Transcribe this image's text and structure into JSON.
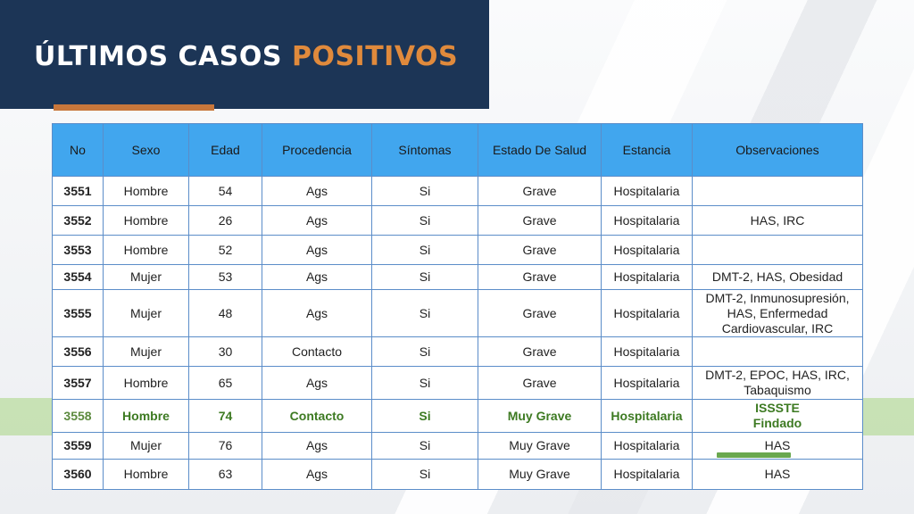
{
  "title": {
    "main": "ÚLTIMOS CASOS ",
    "accent": "POSITIVOS"
  },
  "colors": {
    "title_bg": "#1c3556",
    "accent": "#e08a3c",
    "header_bg": "#41a6ee",
    "highlight": "#a8d682",
    "highlight_text": "#3d7a22"
  },
  "table": {
    "headers": [
      "No",
      "Sexo",
      "Edad",
      "Procedencia",
      "Síntomas",
      "Estado De Salud",
      "Estancia",
      "Observaciones"
    ],
    "rows": [
      [
        "3551",
        "Hombre",
        "54",
        "Ags",
        "Si",
        "Grave",
        "Hospitalaria",
        ""
      ],
      [
        "3552",
        "Hombre",
        "26",
        "Ags",
        "Si",
        "Grave",
        "Hospitalaria",
        "HAS, IRC"
      ],
      [
        "3553",
        "Hombre",
        "52",
        "Ags",
        "Si",
        "Grave",
        "Hospitalaria",
        ""
      ],
      [
        "3554",
        "Mujer",
        "53",
        "Ags",
        "Si",
        "Grave",
        "Hospitalaria",
        "DMT-2, HAS, Obesidad"
      ],
      [
        "3555",
        "Mujer",
        "48",
        "Ags",
        "Si",
        "Grave",
        "Hospitalaria",
        "DMT-2, Inmunosupresión,\nHAS, Enfermedad\nCardiovascular, IRC"
      ],
      [
        "3556",
        "Mujer",
        "30",
        "Contacto",
        "Si",
        "Grave",
        "Hospitalaria",
        ""
      ],
      [
        "3557",
        "Hombre",
        "65",
        "Ags",
        "Si",
        "Grave",
        "Hospitalaria",
        "DMT-2, EPOC, HAS, IRC,\nTabaquismo"
      ],
      [
        "3558",
        "Hombre",
        "74",
        "Contacto",
        "Si",
        "Muy Grave",
        "Hospitalaria",
        "ISSSTE\nFindado"
      ],
      [
        "3559",
        "Mujer",
        "76",
        "Ags",
        "Si",
        "Muy Grave",
        "Hospitalaria",
        "HAS"
      ],
      [
        "3560",
        "Hombre",
        "63",
        "Ags",
        "Si",
        "Muy Grave",
        "Hospitalaria",
        "HAS"
      ]
    ],
    "highlighted_row": "3558"
  }
}
